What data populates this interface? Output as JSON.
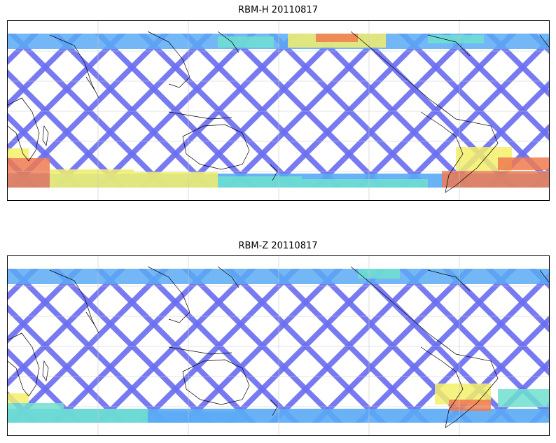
{
  "panels": [
    {
      "title": "RBM-H 20110817",
      "variant": "H"
    },
    {
      "title": "RBM-Z 20110817",
      "variant": "Z"
    }
  ],
  "colors": {
    "low": "#6b6ff0",
    "lowmid": "#5aaaf5",
    "mid": "#6fe0d0",
    "midhigh": "#f4f06a",
    "high": "#f07a50",
    "coast": "#000000",
    "grid": "#c8c8c8"
  }
}
